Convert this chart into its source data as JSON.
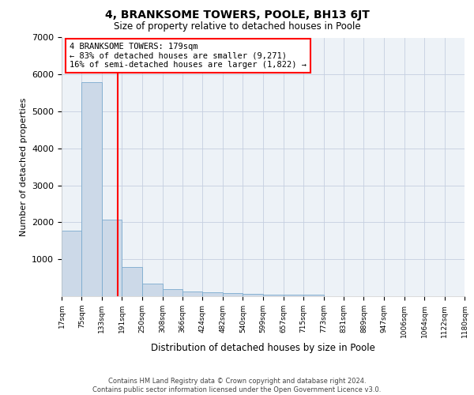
{
  "title": "4, BRANKSOME TOWERS, POOLE, BH13 6JT",
  "subtitle": "Size of property relative to detached houses in Poole",
  "xlabel": "Distribution of detached houses by size in Poole",
  "ylabel": "Number of detached properties",
  "bar_color": "#ccd9e8",
  "bar_edge_color": "#7aaace",
  "bar_heights": [
    1780,
    5800,
    2080,
    800,
    340,
    200,
    120,
    100,
    80,
    60,
    50,
    50,
    50,
    0,
    0,
    0,
    0,
    0,
    0,
    0
  ],
  "bin_edges": [
    17,
    75,
    133,
    191,
    250,
    308,
    366,
    424,
    482,
    540,
    599,
    657,
    715,
    773,
    831,
    889,
    947,
    1006,
    1064,
    1122,
    1180
  ],
  "tick_labels": [
    "17sqm",
    "75sqm",
    "133sqm",
    "191sqm",
    "250sqm",
    "308sqm",
    "366sqm",
    "424sqm",
    "482sqm",
    "540sqm",
    "599sqm",
    "657sqm",
    "715sqm",
    "773sqm",
    "831sqm",
    "889sqm",
    "947sqm",
    "1006sqm",
    "1064sqm",
    "1122sqm",
    "1180sqm"
  ],
  "red_line_x": 179,
  "ylim": [
    0,
    7000
  ],
  "yticks": [
    0,
    1000,
    2000,
    3000,
    4000,
    5000,
    6000,
    7000
  ],
  "annotation_text": "4 BRANKSOME TOWERS: 179sqm\n← 83% of detached houses are smaller (9,271)\n16% of semi-detached houses are larger (1,822) →",
  "footer": "Contains HM Land Registry data © Crown copyright and database right 2024.\nContains public sector information licensed under the Open Government Licence v3.0.",
  "plot_bg_color": "#edf2f7",
  "grid_color": "#c5cfe0"
}
